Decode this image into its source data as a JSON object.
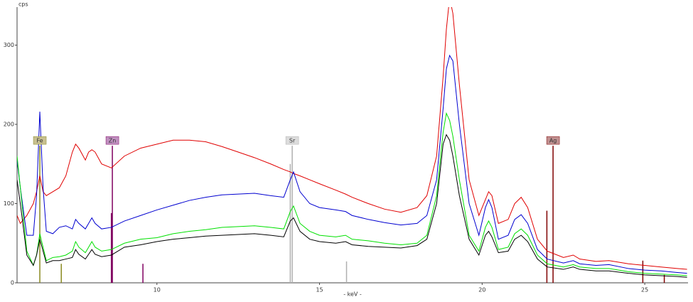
{
  "chart_data": {
    "type": "line",
    "y_unit_label": "cps",
    "x_label": "- keV -",
    "xlim": [
      5.7,
      26.33
    ],
    "ylim": [
      0,
      348
    ],
    "xticks": [
      10,
      15,
      20,
      25
    ],
    "yticks": [
      0,
      100,
      200,
      300
    ],
    "grid": false,
    "x": [
      5.7,
      5.8,
      6.0,
      6.2,
      6.3,
      6.4,
      6.5,
      6.6,
      6.8,
      7.0,
      7.2,
      7.4,
      7.5,
      7.6,
      7.8,
      7.9,
      8.0,
      8.1,
      8.3,
      8.6,
      9.0,
      9.5,
      10,
      10.5,
      11,
      11.5,
      12,
      12.5,
      13,
      13.5,
      13.9,
      14.1,
      14.2,
      14.4,
      14.7,
      15,
      15.5,
      15.8,
      16,
      16.5,
      17,
      17.5,
      18,
      18.3,
      18.6,
      18.8,
      18.9,
      19.0,
      19.1,
      19.3,
      19.6,
      19.9,
      20.1,
      20.2,
      20.3,
      20.5,
      20.8,
      21.0,
      21.2,
      21.4,
      21.7,
      22,
      22.5,
      22.8,
      23,
      23.5,
      23.9,
      24.5,
      25,
      25.5,
      26,
      26.3
    ],
    "series": [
      {
        "color": "#e00000",
        "values": [
          85,
          75,
          85,
          100,
          115,
          135,
          115,
          110,
          115,
          120,
          135,
          165,
          175,
          170,
          155,
          165,
          168,
          165,
          150,
          145,
          160,
          170,
          175,
          180,
          180,
          178,
          172,
          165,
          158,
          150,
          143,
          140,
          138,
          135,
          130,
          125,
          117,
          112,
          108,
          100,
          93,
          89,
          95,
          110,
          160,
          260,
          320,
          360,
          340,
          250,
          130,
          85,
          105,
          115,
          110,
          75,
          80,
          100,
          108,
          95,
          55,
          40,
          32,
          35,
          30,
          27,
          28,
          24,
          22,
          20,
          18,
          17
        ]
      },
      {
        "color": "#0000d0",
        "values": [
          155,
          120,
          60,
          60,
          110,
          216,
          120,
          65,
          62,
          70,
          72,
          68,
          80,
          75,
          68,
          75,
          82,
          75,
          68,
          70,
          78,
          85,
          92,
          98,
          104,
          108,
          111,
          112,
          113,
          110,
          108,
          130,
          140,
          115,
          100,
          95,
          92,
          90,
          85,
          80,
          76,
          73,
          75,
          85,
          130,
          220,
          270,
          287,
          280,
          200,
          100,
          60,
          95,
          105,
          95,
          55,
          60,
          80,
          86,
          75,
          42,
          30,
          25,
          28,
          24,
          22,
          23,
          18,
          16,
          15,
          13,
          12
        ]
      },
      {
        "color": "#00e000",
        "values": [
          160,
          120,
          40,
          22,
          35,
          62,
          45,
          28,
          32,
          33,
          35,
          40,
          52,
          45,
          38,
          45,
          52,
          45,
          40,
          42,
          50,
          55,
          57,
          62,
          65,
          67,
          70,
          71,
          72,
          70,
          68,
          90,
          97,
          75,
          65,
          60,
          58,
          60,
          55,
          53,
          50,
          48,
          50,
          60,
          110,
          190,
          214,
          205,
          185,
          130,
          60,
          40,
          70,
          78,
          70,
          42,
          45,
          62,
          68,
          60,
          35,
          24,
          20,
          23,
          20,
          18,
          18,
          14,
          12,
          11,
          10,
          9
        ]
      },
      {
        "color": "#000000",
        "values": [
          130,
          100,
          35,
          22,
          35,
          55,
          40,
          25,
          28,
          28,
          30,
          32,
          42,
          36,
          30,
          36,
          42,
          36,
          33,
          35,
          45,
          48,
          52,
          55,
          57,
          59,
          60,
          61,
          62,
          60,
          58,
          78,
          82,
          65,
          55,
          52,
          50,
          52,
          48,
          46,
          45,
          44,
          47,
          55,
          100,
          175,
          187,
          180,
          160,
          110,
          55,
          35,
          60,
          65,
          58,
          38,
          40,
          55,
          60,
          52,
          30,
          20,
          17,
          20,
          17,
          15,
          15,
          12,
          10,
          9,
          8,
          7
        ]
      }
    ],
    "element_markers": [
      {
        "label": "Fe",
        "color": "#8a8a20",
        "box_color": "#c8c090",
        "x": [
          6.4,
          7.06
        ],
        "heights": [
          173,
          24
        ]
      },
      {
        "label": "Zn",
        "color": "#800060",
        "box_color": "#c090c0",
        "x": [
          8.63,
          8.6,
          9.57
        ],
        "heights": [
          173,
          88,
          24
        ]
      },
      {
        "label": "Sr",
        "color": "#b0b0b0",
        "box_color": "#dcdcdc",
        "x": [
          14.16,
          14.1,
          15.83
        ],
        "heights": [
          173,
          150,
          27
        ]
      },
      {
        "label": "Ag",
        "color": "#800000",
        "box_color": "#c09090",
        "x": [
          22.18,
          21.99,
          24.94,
          25.6
        ],
        "heights": [
          173,
          91,
          28,
          10
        ]
      }
    ]
  }
}
